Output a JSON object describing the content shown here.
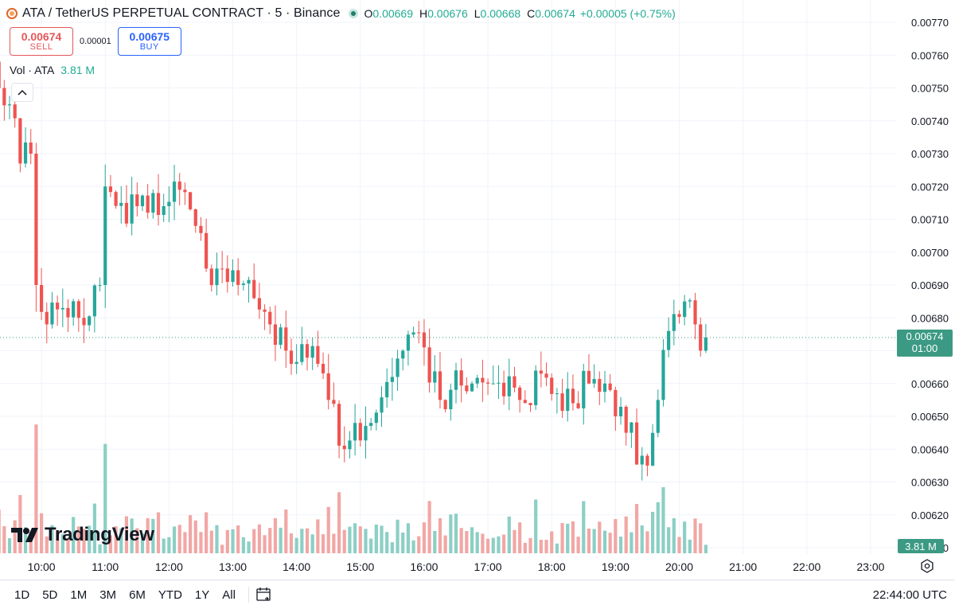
{
  "header": {
    "title": "ATA / TetherUS PERPETUAL CONTRACT · 5 · Binance",
    "ohlc": [
      {
        "k": "O",
        "v": "0.00669"
      },
      {
        "k": "H",
        "v": "0.00676"
      },
      {
        "k": "L",
        "v": "0.00668"
      },
      {
        "k": "C",
        "v": "0.00674"
      }
    ],
    "change": "+0.00005 (+0.75%)"
  },
  "trade": {
    "sell_price": "0.00674",
    "sell_label": "SELL",
    "spread": "0.00001",
    "buy_price": "0.00675",
    "buy_label": "BUY"
  },
  "volume_legend": {
    "label": "Vol · ATA",
    "value": "3.81 M"
  },
  "logo_text": "TradingView",
  "price_marker": {
    "price": "0.00674",
    "countdown": "01:00"
  },
  "volume_marker": "3.81 M",
  "toolbar": {
    "ranges": [
      "1D",
      "5D",
      "1M",
      "3M",
      "6M",
      "YTD",
      "1Y",
      "All"
    ],
    "clock": "22:44:00 UTC"
  },
  "colors": {
    "up": "#26a69a",
    "down": "#ef5350",
    "up_vol": "#8ccfc5",
    "down_vol": "#f1a7a5",
    "grid": "#f0f3fa"
  },
  "icons": [
    "chevron-up-icon",
    "tradingview-logo-icon",
    "settings-icon",
    "calendar-icon"
  ],
  "chart_data": {
    "type": "candlestick",
    "y_ticks": [
      "0.00770",
      "0.00760",
      "0.00750",
      "0.00740",
      "0.00730",
      "0.00720",
      "0.00710",
      "0.00700",
      "0.00690",
      "0.00680",
      "0.00670",
      "0.00660",
      "0.00650",
      "0.00640",
      "0.00630",
      "0.00620",
      "0.00610"
    ],
    "x_ticks": [
      "10:00",
      "11:00",
      "12:00",
      "13:00",
      "14:00",
      "15:00",
      "16:00",
      "17:00",
      "18:00",
      "19:00",
      "20:00",
      "21:00",
      "22:00",
      "23:00"
    ],
    "x_tick_hours": [
      10,
      11,
      12,
      13,
      14,
      15,
      16,
      17,
      18,
      19,
      20,
      21,
      22,
      23
    ],
    "y_range": [
      0.0061,
      0.0077
    ],
    "x_range_hours": [
      9.35,
      23.55
    ],
    "start_hour": 9.3333,
    "interval_minutes": 5,
    "last_price": 0.00674,
    "anchors": [
      [
        0,
        0.0075
      ],
      [
        2,
        0.00745
      ],
      [
        4,
        0.00727
      ],
      [
        6,
        0.0073
      ],
      [
        7,
        0.0069
      ],
      [
        9,
        0.00678
      ],
      [
        12,
        0.00683
      ],
      [
        15,
        0.0068
      ],
      [
        19,
        0.0069
      ],
      [
        20,
        0.0072
      ],
      [
        23,
        0.00715
      ],
      [
        26,
        0.00714
      ],
      [
        29,
        0.00718
      ],
      [
        31,
        0.00714
      ],
      [
        34,
        0.00719
      ],
      [
        37,
        0.00708
      ],
      [
        39,
        0.00695
      ],
      [
        42,
        0.00695
      ],
      [
        45,
        0.0069
      ],
      [
        48,
        0.00686
      ],
      [
        51,
        0.00678
      ],
      [
        54,
        0.0067
      ],
      [
        57,
        0.00672
      ],
      [
        60,
        0.00666
      ],
      [
        62,
        0.00655
      ],
      [
        65,
        0.0064
      ],
      [
        67,
        0.00648
      ],
      [
        70,
        0.00648
      ],
      [
        74,
        0.00662
      ],
      [
        76,
        0.0067
      ],
      [
        80,
        0.00671
      ],
      [
        83,
        0.00655
      ],
      [
        86,
        0.00664
      ],
      [
        89,
        0.0066
      ],
      [
        93,
        0.0066
      ],
      [
        98,
        0.00655
      ],
      [
        102,
        0.00663
      ],
      [
        105,
        0.00657
      ],
      [
        108,
        0.00654
      ],
      [
        111,
        0.0066
      ],
      [
        114,
        0.0066
      ],
      [
        116,
        0.0065
      ],
      [
        118,
        0.00645
      ],
      [
        121,
        0.00638
      ],
      [
        122,
        0.00635
      ],
      [
        124,
        0.00655
      ],
      [
        126,
        0.00676
      ],
      [
        129,
        0.00685
      ],
      [
        131,
        0.00678
      ],
      [
        132,
        0.0067
      ],
      [
        133,
        0.00674
      ]
    ],
    "volume_range": [
      0,
      4.1
    ],
    "volume_unit": "M"
  }
}
